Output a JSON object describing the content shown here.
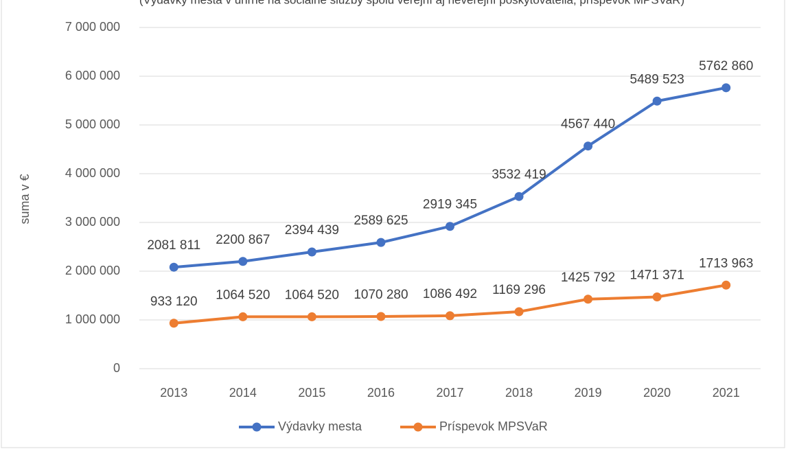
{
  "chart_data": {
    "type": "line",
    "subtitle": "(Výdavky mesta v úhrne na sociálne služby spolu verejní aj neverejní poskytovatelia, príspevok MPSVaR)",
    "y_label": "suma v €",
    "categories": [
      "2013",
      "2014",
      "2015",
      "2016",
      "2017",
      "2018",
      "2019",
      "2020",
      "2021"
    ],
    "series": [
      {
        "name": "Výdavky mesta",
        "color": "#4472c4",
        "values": [
          2081811,
          2200867,
          2394439,
          2589625,
          2919345,
          3532419,
          4567440,
          5489523,
          5762860
        ],
        "value_labels": [
          "2081 811",
          "2200 867",
          "2394 439",
          "2589 625",
          "2919 345",
          "3532 419",
          "4567 440",
          "5489 523",
          "5762 860"
        ]
      },
      {
        "name": "Príspevok MPSVaR",
        "color": "#ed7d31",
        "values": [
          933120,
          1064520,
          1064520,
          1070280,
          1086492,
          1169296,
          1425792,
          1471371,
          1713963
        ],
        "value_labels": [
          "933 120",
          "1064 520",
          "1064 520",
          "1070 280",
          "1086 492",
          "1169 296",
          "1425 792",
          "1471 371",
          "1713 963"
        ]
      }
    ],
    "ylim": [
      0,
      7000000
    ],
    "yticks": [
      0,
      {
        "value": 1000000,
        "label": "1 000 000"
      },
      {
        "value": 2000000,
        "label": "2 000 000"
      },
      {
        "value": 3000000,
        "label": "3 000 000"
      },
      {
        "value": 4000000,
        "label": "4 000 000"
      },
      {
        "value": 5000000,
        "label": "5 000 000"
      },
      {
        "value": 6000000,
        "label": "6 000 000"
      },
      {
        "value": 7000000,
        "label": "7 000 000"
      }
    ],
    "grid": true,
    "legend": "bottom"
  }
}
